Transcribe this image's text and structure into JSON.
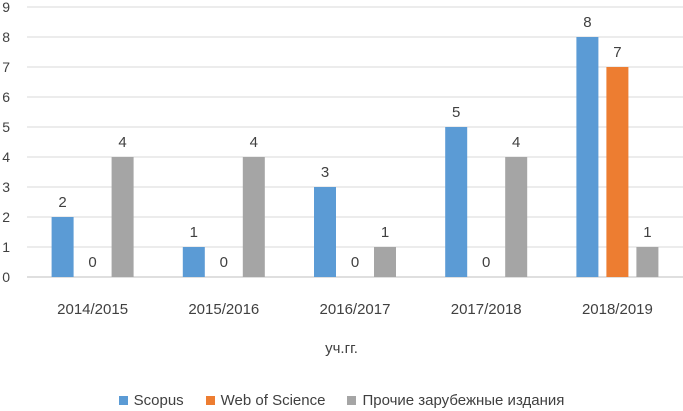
{
  "chart_data": {
    "type": "bar",
    "categories": [
      "2014/2015",
      "2015/2016",
      "2016/2017",
      "2017/2018",
      "2018/2019"
    ],
    "series": [
      {
        "name": "Scopus",
        "values": [
          2,
          1,
          3,
          5,
          8
        ],
        "color": "#5B9BD5"
      },
      {
        "name": "Web of Science",
        "values": [
          0,
          0,
          0,
          0,
          7
        ],
        "color": "#ED7D31"
      },
      {
        "name": "Прочие зарубежные издания",
        "values": [
          4,
          4,
          1,
          4,
          1
        ],
        "color": "#A5A5A5"
      }
    ],
    "yticks": [
      "0",
      "1",
      "2",
      "3",
      "4",
      "5",
      "6",
      "7",
      "8",
      "9"
    ],
    "ylim": [
      0,
      9
    ],
    "xlabel": "уч.гг.",
    "legend_position": "bottom",
    "grid": true
  }
}
